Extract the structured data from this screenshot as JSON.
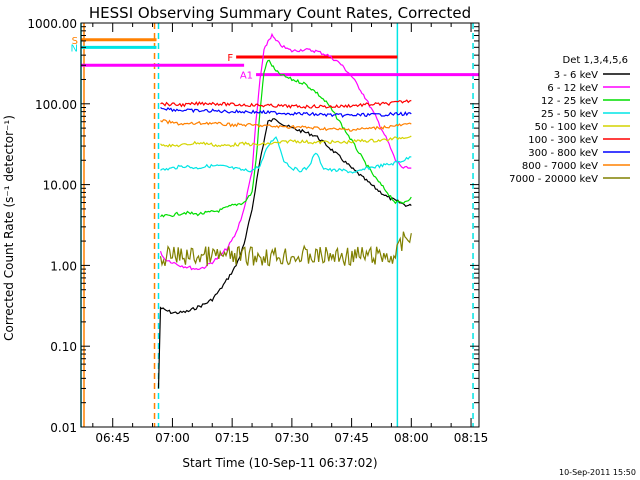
{
  "chart_data": {
    "type": "line",
    "title": "HESSI Observing Summary Count Rates, Corrected",
    "xlabel": "Start Time (10-Sep-11 06:37:02)",
    "ylabel": "Corrected Count Rate (s⁻¹ detector⁻¹)",
    "yscale": "log",
    "ylim": [
      0.01,
      1000
    ],
    "xlim": [
      "06:37:02",
      "08:17:00"
    ],
    "x_ticks": [
      "06:45",
      "07:00",
      "07:15",
      "07:30",
      "07:45",
      "08:00",
      "08:15"
    ],
    "y_ticks": [
      "0.01",
      "0.10",
      "1.00",
      "10.00",
      "100.00",
      "1000.00"
    ],
    "stamp": "10-Sep-2011 15:50",
    "legend": {
      "title": "Det 1,3,4,5,6",
      "position": "right",
      "entries": [
        {
          "label": "3 - 6 keV",
          "color": "#000000"
        },
        {
          "label": "6 - 12 keV",
          "color": "#ff00ff"
        },
        {
          "label": "12 - 25 keV",
          "color": "#00dd00"
        },
        {
          "label": "25 - 50 keV",
          "color": "#00e5e5"
        },
        {
          "label": "50 - 100 keV",
          "color": "#d4d400"
        },
        {
          "label": "100 - 300 keV",
          "color": "#ff0000"
        },
        {
          "label": "300 - 800 keV",
          "color": "#0000ff"
        },
        {
          "label": "800 - 7000 keV",
          "color": "#ff8000"
        },
        {
          "label": "7000 - 20000 keV",
          "color": "#808000"
        }
      ]
    },
    "series": [
      {
        "name": "3 - 6 keV",
        "color": "#000000",
        "x": [
          "06:56:30",
          "06:57:00",
          "06:58",
          "07:00",
          "07:02",
          "07:04",
          "07:06",
          "07:08",
          "07:10",
          "07:12",
          "07:14",
          "07:16",
          "07:18",
          "07:20",
          "07:22",
          "07:24",
          "07:26",
          "07:28",
          "07:30",
          "07:33",
          "07:36",
          "07:39",
          "07:42",
          "07:45",
          "07:48",
          "07:51",
          "07:54",
          "07:57",
          "07:59",
          "08:00"
        ],
        "y": [
          0.03,
          0.3,
          0.28,
          0.26,
          0.26,
          0.27,
          0.3,
          0.33,
          0.38,
          0.5,
          0.7,
          1.0,
          1.8,
          5,
          20,
          60,
          65,
          55,
          50,
          45,
          40,
          30,
          22,
          16,
          12,
          9,
          7,
          6,
          5.5,
          5.5
        ]
      },
      {
        "name": "6 - 12 keV",
        "color": "#ff00ff",
        "x": [
          "06:57:00",
          "06:58",
          "07:00",
          "07:02",
          "07:04",
          "07:06",
          "07:08",
          "07:10",
          "07:12",
          "07:14",
          "07:16",
          "07:18",
          "07:20",
          "07:21",
          "07:22",
          "07:23",
          "07:24",
          "07:25",
          "07:26",
          "07:28",
          "07:30",
          "07:33",
          "07:36",
          "07:39",
          "07:42",
          "07:45",
          "07:48",
          "07:51",
          "07:54",
          "07:56",
          "07:58",
          "08:00"
        ],
        "y": [
          1.5,
          1.2,
          1.1,
          1.0,
          0.95,
          0.9,
          0.95,
          1.1,
          1.3,
          1.7,
          2.5,
          5,
          15,
          60,
          200,
          450,
          600,
          700,
          600,
          500,
          450,
          470,
          450,
          400,
          320,
          220,
          130,
          70,
          35,
          20,
          16,
          16
        ]
      },
      {
        "name": "12 - 25 keV",
        "color": "#00dd00",
        "x": [
          "06:57:00",
          "07:00",
          "07:03",
          "07:06",
          "07:09",
          "07:12",
          "07:15",
          "07:18",
          "07:20",
          "07:21",
          "07:22",
          "07:23",
          "07:24",
          "07:25",
          "07:26",
          "07:28",
          "07:30",
          "07:33",
          "07:36",
          "07:39",
          "07:42",
          "07:45",
          "07:48",
          "07:51",
          "07:54",
          "07:56",
          "07:58",
          "08:00"
        ],
        "y": [
          4,
          4.2,
          4.5,
          4.3,
          4.5,
          4.8,
          5.5,
          6,
          8,
          20,
          80,
          250,
          350,
          300,
          250,
          220,
          200,
          180,
          140,
          100,
          60,
          35,
          20,
          12,
          8,
          6,
          6,
          7
        ]
      },
      {
        "name": "25 - 50 keV",
        "color": "#00e5e5",
        "x": [
          "06:57:00",
          "07:00",
          "07:03",
          "07:06",
          "07:09",
          "07:12",
          "07:15",
          "07:18",
          "07:20",
          "07:22",
          "07:24",
          "07:26",
          "07:28",
          "07:30",
          "07:32",
          "07:34",
          "07:36",
          "07:38",
          "07:40",
          "07:43",
          "07:46",
          "07:49",
          "07:52",
          "07:55",
          "07:58",
          "08:00"
        ],
        "y": [
          15,
          16,
          17,
          16,
          17,
          17,
          16,
          15,
          15,
          17,
          30,
          40,
          20,
          16,
          15,
          16,
          25,
          16,
          15,
          15,
          14,
          16,
          17,
          18,
          20,
          22
        ]
      },
      {
        "name": "50 - 100 keV",
        "color": "#d4d400",
        "x": [
          "06:57:00",
          "07:00",
          "07:03",
          "07:06",
          "07:09",
          "07:12",
          "07:15",
          "07:18",
          "07:21",
          "07:24",
          "07:27",
          "07:30",
          "07:33",
          "07:36",
          "07:39",
          "07:42",
          "07:45",
          "07:48",
          "07:51",
          "07:54",
          "07:57",
          "08:00"
        ],
        "y": [
          32,
          30,
          31,
          33,
          32,
          30,
          31,
          32,
          31,
          32,
          33,
          35,
          34,
          33,
          34,
          33,
          34,
          35,
          35,
          36,
          38,
          40
        ]
      },
      {
        "name": "100 - 300 keV",
        "color": "#ff0000",
        "x": [
          "06:57:00",
          "07:00",
          "07:03",
          "07:06",
          "07:09",
          "07:12",
          "07:15",
          "07:18",
          "07:21",
          "07:24",
          "07:27",
          "07:30",
          "07:33",
          "07:36",
          "07:39",
          "07:42",
          "07:45",
          "07:48",
          "07:51",
          "07:54",
          "07:57",
          "08:00"
        ],
        "y": [
          100,
          98,
          97,
          100,
          102,
          100,
          98,
          97,
          96,
          95,
          94,
          93,
          92,
          93,
          92,
          93,
          95,
          97,
          99,
          100,
          105,
          110
        ]
      },
      {
        "name": "300 - 800 keV",
        "color": "#0000ff",
        "x": [
          "06:57:00",
          "07:00",
          "07:03",
          "07:06",
          "07:09",
          "07:12",
          "07:15",
          "07:18",
          "07:21",
          "07:24",
          "07:27",
          "07:30",
          "07:33",
          "07:36",
          "07:39",
          "07:42",
          "07:45",
          "07:48",
          "07:51",
          "07:54",
          "07:57",
          "08:00"
        ],
        "y": [
          90,
          85,
          83,
          82,
          82,
          81,
          80,
          80,
          79,
          78,
          77,
          76,
          75,
          74,
          73,
          72,
          72,
          73,
          73,
          74,
          75,
          75
        ]
      },
      {
        "name": "800 - 7000 keV",
        "color": "#ff8000",
        "x": [
          "06:57:00",
          "07:00",
          "07:03",
          "07:06",
          "07:09",
          "07:12",
          "07:15",
          "07:18",
          "07:21",
          "07:24",
          "07:27",
          "07:30",
          "07:33",
          "07:36",
          "07:39",
          "07:42",
          "07:45",
          "07:48",
          "07:51",
          "07:54",
          "07:57",
          "08:00"
        ],
        "y": [
          62,
          58,
          56,
          57,
          58,
          56,
          55,
          55,
          54,
          53,
          52,
          52,
          51,
          50,
          49,
          48,
          48,
          49,
          50,
          52,
          54,
          56
        ]
      },
      {
        "name": "7000 - 20000 keV",
        "color": "#808000",
        "x": [
          "06:57:00",
          "07:00",
          "07:04",
          "07:08",
          "07:12",
          "07:16",
          "07:20",
          "07:24",
          "07:28",
          "07:32",
          "07:36",
          "07:40",
          "07:44",
          "07:48",
          "07:52",
          "07:56",
          "07:58",
          "08:00"
        ],
        "y": [
          1.3,
          1.3,
          1.3,
          1.3,
          1.3,
          1.3,
          1.3,
          1.3,
          1.3,
          1.3,
          1.3,
          1.3,
          1.3,
          1.3,
          1.3,
          1.3,
          2.0,
          2.5
        ]
      }
    ],
    "flags": [
      {
        "label": "S",
        "color": "#ff8000",
        "x": [
          "06:37:02",
          "06:56:00"
        ],
        "y": 620
      },
      {
        "label": "N",
        "color": "#00e5e5",
        "x": [
          "06:37:02",
          "06:56:00"
        ],
        "y": 500
      },
      {
        "label": "F",
        "color": "#ff0000",
        "x": [
          "07:16:00",
          "07:56:30"
        ],
        "y": 380
      },
      {
        "label": "A1",
        "color": "#ff00ff",
        "x": [
          "07:21:00",
          "08:17:00"
        ],
        "y": 230
      },
      {
        "label": "",
        "color": "#ff00ff",
        "x": [
          "06:37:02",
          "07:18:00"
        ],
        "y": 300
      }
    ],
    "vlines": [
      {
        "color": "#00e5e5",
        "x": "06:37:02",
        "style": "solid"
      },
      {
        "color": "#ff8000",
        "x": "06:37:02",
        "style": "solid"
      },
      {
        "color": "#ff8000",
        "x": "06:55:30",
        "style": "dashed"
      },
      {
        "color": "#00e5e5",
        "x": "06:56:30",
        "style": "dashed"
      },
      {
        "color": "#00e5e5",
        "x": "07:56:30",
        "style": "solid"
      },
      {
        "color": "#00e5e5",
        "x": "08:15:30",
        "style": "dashed"
      }
    ]
  }
}
